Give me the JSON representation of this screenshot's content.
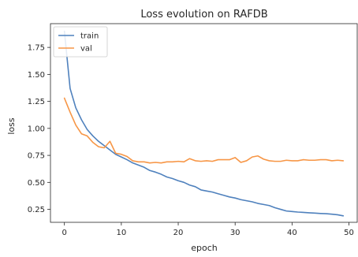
{
  "chart_data": {
    "type": "line",
    "title": "Loss evolution on RAFDB",
    "xlabel": "epoch",
    "ylabel": "loss",
    "xlim": [
      -2.45,
      51.45
    ],
    "ylim": [
      0.13,
      1.97
    ],
    "xticks": [
      0,
      10,
      20,
      30,
      40,
      50
    ],
    "yticks": [
      0.25,
      0.5,
      0.75,
      1.0,
      1.25,
      1.5,
      1.75
    ],
    "xtick_labels": [
      "0",
      "10",
      "20",
      "30",
      "40",
      "50"
    ],
    "ytick_labels": [
      "0.25",
      "0.50",
      "0.75",
      "1.00",
      "1.25",
      "1.50",
      "1.75"
    ],
    "grid": false,
    "legend_position": "top-left",
    "x": [
      0,
      1,
      2,
      3,
      4,
      5,
      6,
      7,
      8,
      9,
      10,
      11,
      12,
      13,
      14,
      15,
      16,
      17,
      18,
      19,
      20,
      21,
      22,
      23,
      24,
      25,
      26,
      27,
      28,
      29,
      30,
      31,
      32,
      33,
      34,
      35,
      36,
      37,
      38,
      39,
      40,
      41,
      42,
      43,
      44,
      45,
      46,
      47,
      48,
      49
    ],
    "series": [
      {
        "name": "train",
        "color": "#4f81bd",
        "values": [
          1.9,
          1.37,
          1.19,
          1.08,
          0.99,
          0.93,
          0.88,
          0.84,
          0.8,
          0.76,
          0.735,
          0.71,
          0.68,
          0.66,
          0.64,
          0.61,
          0.595,
          0.575,
          0.55,
          0.535,
          0.515,
          0.5,
          0.475,
          0.46,
          0.43,
          0.42,
          0.41,
          0.395,
          0.38,
          0.365,
          0.355,
          0.34,
          0.33,
          0.32,
          0.305,
          0.295,
          0.285,
          0.265,
          0.25,
          0.235,
          0.23,
          0.225,
          0.222,
          0.218,
          0.215,
          0.212,
          0.21,
          0.205,
          0.2,
          0.19
        ]
      },
      {
        "name": "val",
        "color": "#f79646",
        "values": [
          1.28,
          1.15,
          1.03,
          0.95,
          0.93,
          0.87,
          0.83,
          0.82,
          0.88,
          0.77,
          0.76,
          0.74,
          0.7,
          0.69,
          0.69,
          0.68,
          0.685,
          0.68,
          0.69,
          0.69,
          0.695,
          0.69,
          0.72,
          0.7,
          0.695,
          0.7,
          0.695,
          0.71,
          0.71,
          0.71,
          0.73,
          0.685,
          0.7,
          0.735,
          0.745,
          0.715,
          0.7,
          0.695,
          0.695,
          0.705,
          0.7,
          0.7,
          0.71,
          0.705,
          0.705,
          0.71,
          0.71,
          0.7,
          0.705,
          0.7
        ]
      }
    ]
  }
}
